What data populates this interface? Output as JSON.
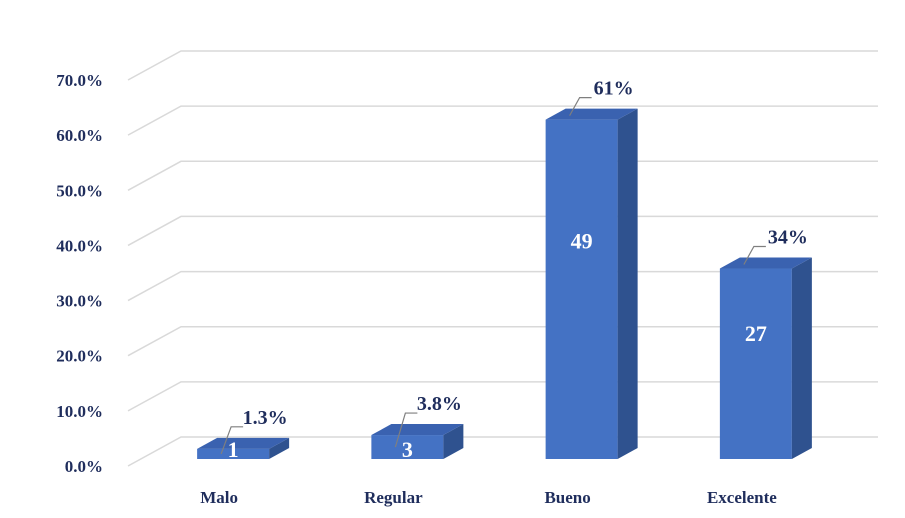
{
  "chart_data": {
    "type": "bar",
    "categories": [
      "Malo",
      "Regular",
      "Bueno",
      "Excelente"
    ],
    "values": [
      1.3,
      3.8,
      61,
      34
    ],
    "percent_labels": [
      "1.3%",
      "3.8%",
      "61%",
      "34%"
    ],
    "count_labels": [
      "1",
      "3",
      "49",
      "27"
    ],
    "y_ticks": [
      "0.0%",
      "10.0%",
      "20.0%",
      "30.0%",
      "40.0%",
      "50.0%",
      "60.0%",
      "70.0%"
    ],
    "ylim": [
      0,
      70
    ],
    "grid": true,
    "style": "3d-column",
    "colors": {
      "front": "#4472c4",
      "side": "#2f528f",
      "top": "#3a62b0",
      "text": "#1f2d5c",
      "grid": "#d9d9d9"
    }
  }
}
